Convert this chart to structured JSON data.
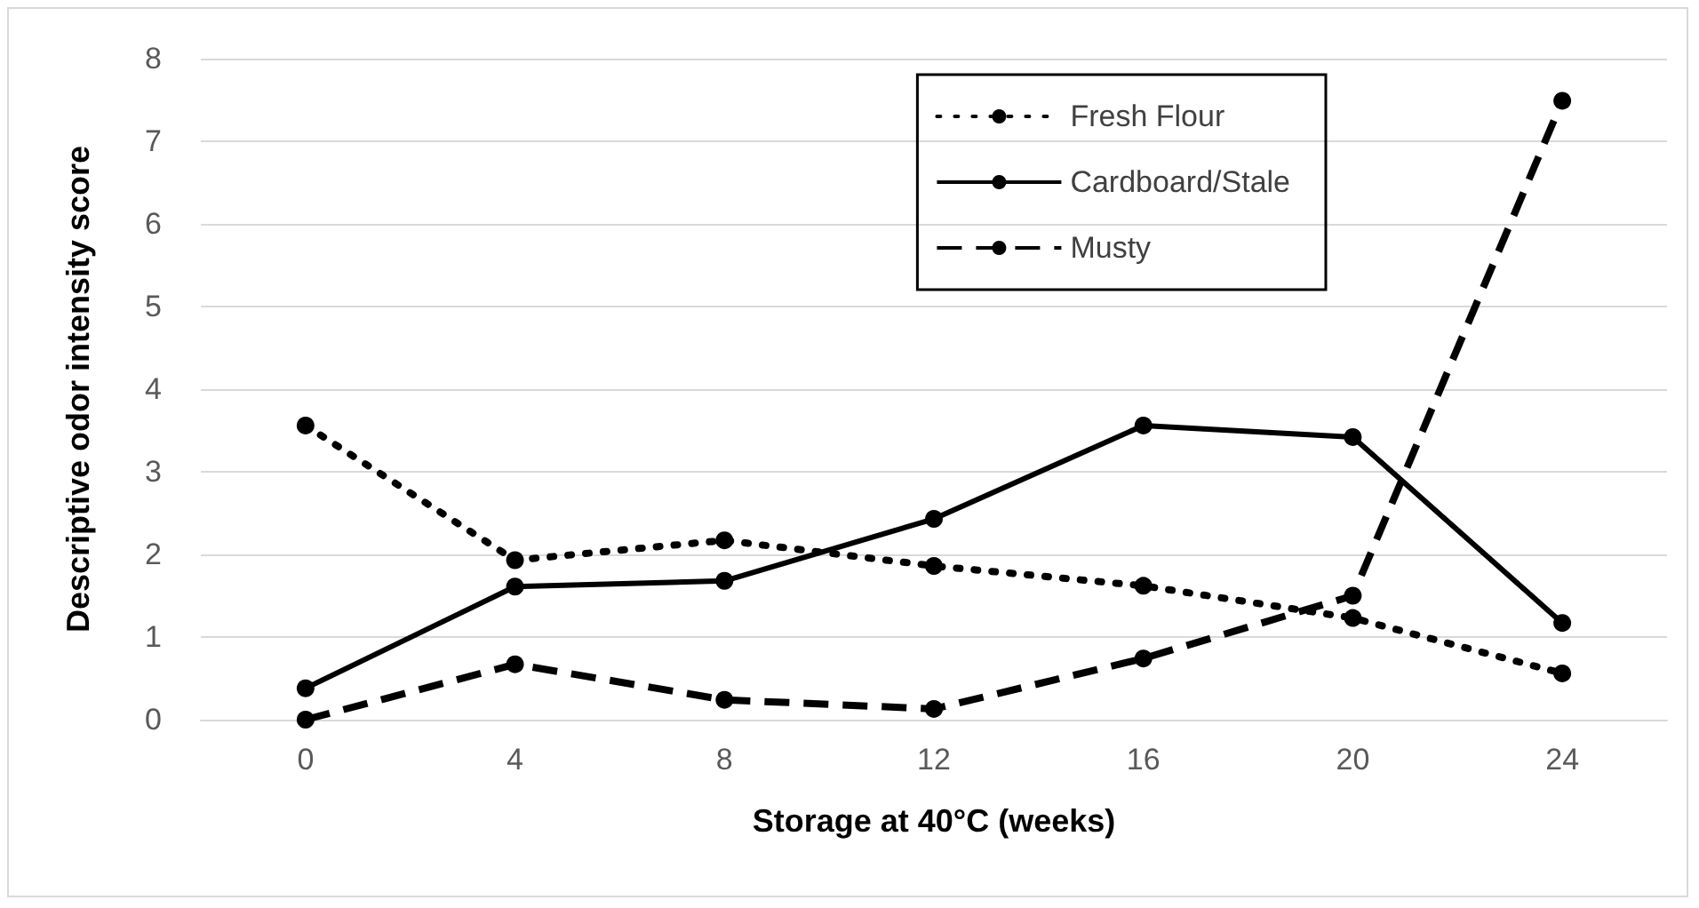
{
  "chart_data": {
    "type": "line",
    "xlabel": "Storage at 40°C (weeks)",
    "ylabel": "Descriptive odor intensity score",
    "categories": [
      "0",
      "4",
      "8",
      "12",
      "16",
      "20",
      "24"
    ],
    "series": [
      {
        "name": "Fresh Flour",
        "color": "#000000",
        "line_style": "dotted",
        "values": [
          3.56,
          1.93,
          2.17,
          1.86,
          1.62,
          1.23,
          0.56
        ]
      },
      {
        "name": "Cardboard/Stale",
        "color": "#000000",
        "line_style": "solid",
        "values": [
          0.38,
          1.61,
          1.68,
          2.43,
          3.56,
          3.42,
          1.17
        ]
      },
      {
        "name": "Musty",
        "color": "#000000",
        "line_style": "dashed",
        "values": [
          0,
          0.67,
          0.24,
          0.13,
          0.74,
          1.5,
          7.49
        ]
      }
    ],
    "ylim": [
      0,
      8
    ],
    "yticks": [
      0,
      1,
      2,
      3,
      4,
      5,
      6,
      7,
      8
    ],
    "grid": "y",
    "legend": "top right",
    "marker": "circle"
  }
}
